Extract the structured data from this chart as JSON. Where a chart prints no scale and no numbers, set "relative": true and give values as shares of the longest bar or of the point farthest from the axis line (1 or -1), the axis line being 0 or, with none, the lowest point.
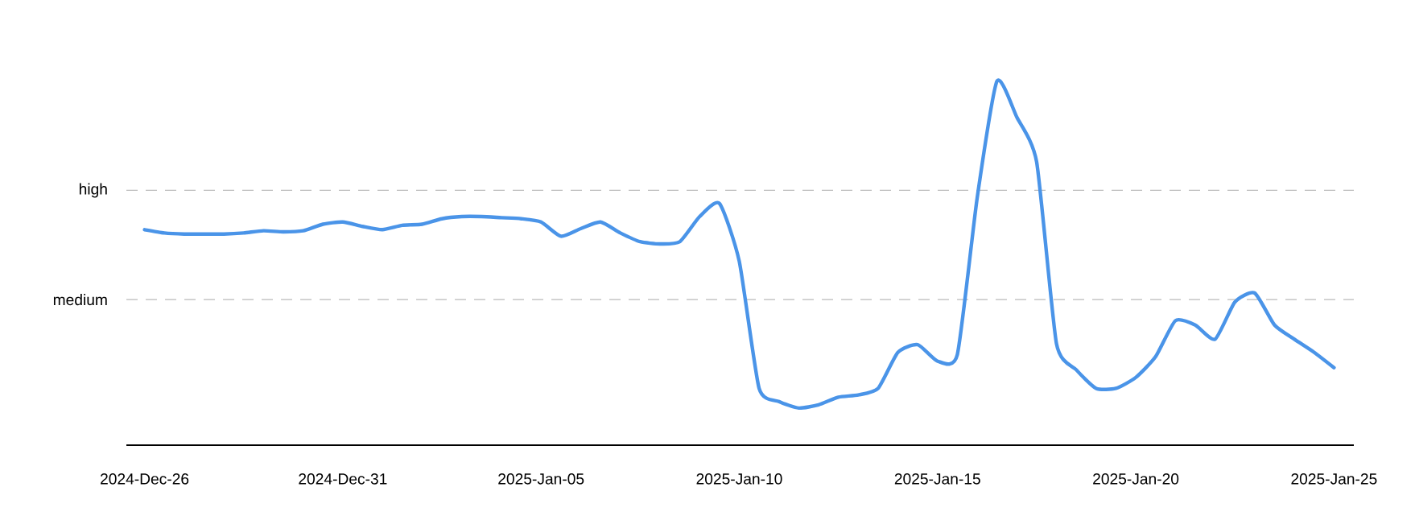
{
  "chart_data": {
    "type": "line",
    "relative": true,
    "x": [
      "2024-12-26T00:00",
      "2024-12-26T12:00",
      "2024-12-27T00:00",
      "2024-12-27T12:00",
      "2024-12-28T00:00",
      "2024-12-28T12:00",
      "2024-12-29T00:00",
      "2024-12-29T12:00",
      "2024-12-30T00:00",
      "2024-12-30T12:00",
      "2024-12-31T00:00",
      "2024-12-31T12:00",
      "2025-01-01T00:00",
      "2025-01-01T12:00",
      "2025-01-02T00:00",
      "2025-01-02T12:00",
      "2025-01-03T00:00",
      "2025-01-03T12:00",
      "2025-01-04T00:00",
      "2025-01-04T12:00",
      "2025-01-05T00:00",
      "2025-01-05T12:00",
      "2025-01-06T00:00",
      "2025-01-06T12:00",
      "2025-01-07T00:00",
      "2025-01-07T12:00",
      "2025-01-08T00:00",
      "2025-01-08T12:00",
      "2025-01-09T00:00",
      "2025-01-09T12:00",
      "2025-01-10T00:00",
      "2025-01-10T12:00",
      "2025-01-11T00:00",
      "2025-01-11T12:00",
      "2025-01-12T00:00",
      "2025-01-12T12:00",
      "2025-01-13T00:00",
      "2025-01-13T12:00",
      "2025-01-14T00:00",
      "2025-01-14T12:00",
      "2025-01-15T00:00",
      "2025-01-15T12:00",
      "2025-01-16T00:00",
      "2025-01-16T12:00",
      "2025-01-17T00:00",
      "2025-01-17T12:00",
      "2025-01-18T00:00",
      "2025-01-18T12:00",
      "2025-01-19T00:00",
      "2025-01-19T12:00",
      "2025-01-20T00:00",
      "2025-01-20T12:00",
      "2025-01-21T00:00",
      "2025-01-21T12:00",
      "2025-01-22T00:00",
      "2025-01-22T12:00",
      "2025-01-23T00:00",
      "2025-01-23T12:00",
      "2025-01-24T00:00",
      "2025-01-24T12:00",
      "2025-01-25T00:00"
    ],
    "series": [
      {
        "color": "#4a94e8",
        "values": [
          0.592,
          0.583,
          0.58,
          0.58,
          0.58,
          0.583,
          0.589,
          0.586,
          0.589,
          0.607,
          0.613,
          0.601,
          0.592,
          0.604,
          0.607,
          0.622,
          0.628,
          0.628,
          0.625,
          0.622,
          0.613,
          0.574,
          0.595,
          0.613,
          0.583,
          0.559,
          0.553,
          0.559,
          0.628,
          0.664,
          0.505,
          0.156,
          0.12,
          0.102,
          0.111,
          0.132,
          0.138,
          0.156,
          0.255,
          0.276,
          0.231,
          0.249,
          0.679,
          1.0,
          0.901,
          0.778,
          0.279,
          0.207,
          0.156,
          0.156,
          0.186,
          0.243,
          0.342,
          0.33,
          0.291,
          0.393,
          0.418,
          0.33,
          0.291,
          0.255,
          0.213
        ]
      }
    ],
    "xlim": [
      "2024-12-25T13:00",
      "2025-01-25T12:00"
    ],
    "xticks": [
      {
        "value": "2024-12-26",
        "label": "2024-Dec-26"
      },
      {
        "value": "2024-12-31",
        "label": "2024-Dec-31"
      },
      {
        "value": "2025-01-05",
        "label": "2025-Jan-05"
      },
      {
        "value": "2025-01-10",
        "label": "2025-Jan-10"
      },
      {
        "value": "2025-01-15",
        "label": "2025-Jan-15"
      },
      {
        "value": "2025-01-20",
        "label": "2025-Jan-20"
      },
      {
        "value": "2025-01-25",
        "label": "2025-Jan-25"
      }
    ],
    "ref_lines": [
      {
        "axis": "y",
        "value": 0.7,
        "label": "high",
        "color": "#bbbbbb",
        "line_style": "dashed"
      },
      {
        "axis": "y",
        "value": 0.4,
        "label": "medium",
        "color": "#bbbbbb",
        "line_style": "dashed"
      }
    ]
  }
}
